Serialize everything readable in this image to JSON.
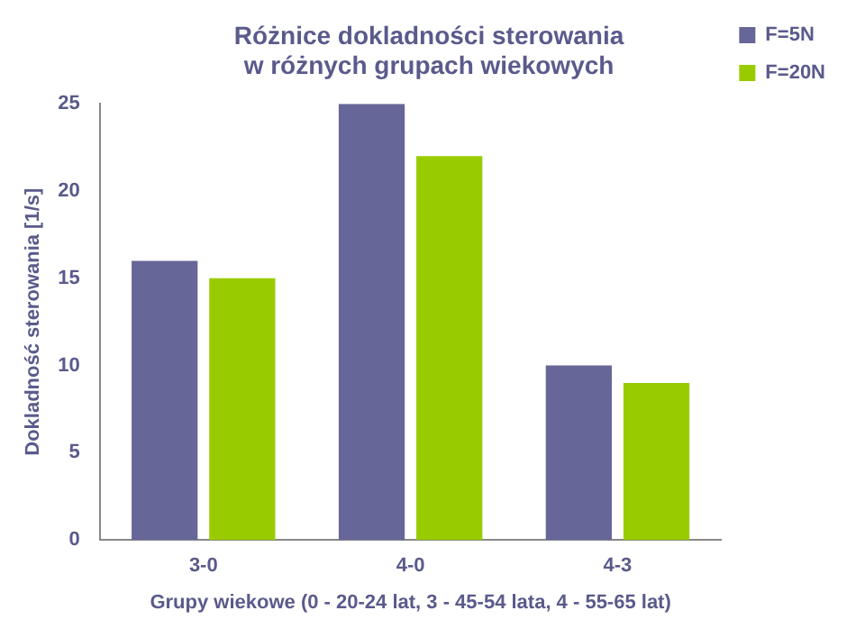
{
  "chart_data": {
    "type": "bar",
    "title": "Różnice dokladności sterowania\nw różnych grupach wiekowych",
    "xlabel": "Grupy wiekowe (0 - 20-24 lat, 3 - 45-54 lata, 4 - 55-65 lat)",
    "ylabel": "Dokladność sterowania [1/s]",
    "categories": [
      "3-0",
      "4-0",
      "4-3"
    ],
    "series": [
      {
        "name": "F=5N",
        "color": "#666699",
        "values": [
          16,
          25,
          10
        ]
      },
      {
        "name": "F=20N",
        "color": "#99cc00",
        "values": [
          15,
          22,
          9
        ]
      }
    ],
    "ylim": [
      0,
      25
    ],
    "yticks": [
      0,
      5,
      10,
      15,
      20,
      25
    ],
    "grid": false,
    "legend": "top right"
  }
}
